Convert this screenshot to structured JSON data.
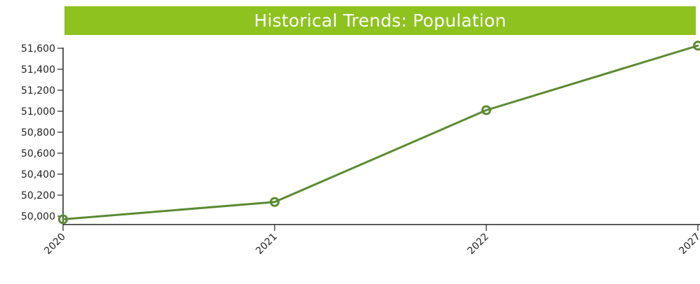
{
  "chart_data": {
    "type": "line",
    "title": "Historical Trends: Population",
    "categories": [
      "2020",
      "2021",
      "2022",
      "2027"
    ],
    "series": [
      {
        "values": [
          49970,
          50135,
          51010,
          51625
        ]
      }
    ],
    "yticks": [
      "50,000",
      "50,200",
      "50,400",
      "50,600",
      "50,800",
      "51,000",
      "51,200",
      "51,400",
      "51,600"
    ],
    "ytick_values": [
      50000,
      50200,
      50400,
      50600,
      50800,
      51000,
      51200,
      51400,
      51600
    ],
    "ylim": [
      49920,
      51660
    ],
    "grid": false,
    "colors": {
      "title_bar": "#8dc21f",
      "line": "#5b8a32",
      "axis": "#222222"
    }
  }
}
